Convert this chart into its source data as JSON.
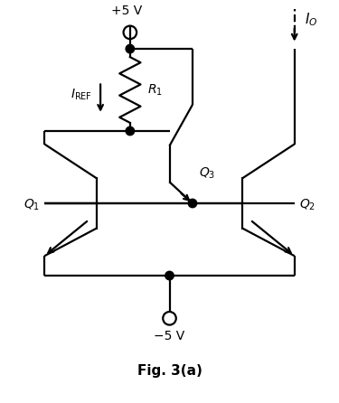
{
  "title": "Fig. 3(a)",
  "bg_color": "#ffffff",
  "line_color": "#000000",
  "fig_width": 3.75,
  "fig_height": 4.46,
  "dpi": 100,
  "vcc_label": "+5 V",
  "vee_label": "−5 V",
  "iref_label": "$I_{\\mathrm{REF}}$",
  "r1_label": "$R_1$",
  "io_label": "$I_O$",
  "q1_label": "$Q_1$",
  "q2_label": "$Q_2$",
  "q3_label": "$Q_3$"
}
